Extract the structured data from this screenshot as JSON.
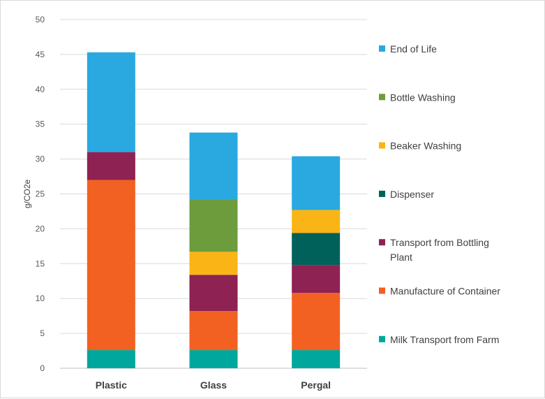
{
  "chart_data": {
    "type": "bar",
    "stacked": true,
    "title": "",
    "xlabel": "",
    "ylabel": "g/CO2e",
    "ylim": [
      0,
      50
    ],
    "yticks": [
      0,
      5,
      10,
      15,
      20,
      25,
      30,
      35,
      40,
      45,
      50
    ],
    "grid": true,
    "legend_position": "right",
    "categories": [
      "Plastic",
      "Glass",
      "Pergal"
    ],
    "series": [
      {
        "name": "Milk Transport from Farm",
        "label_lines": [
          "Milk Transport from Farm"
        ],
        "color": "#00A79D",
        "values": [
          2.6,
          2.6,
          2.6
        ]
      },
      {
        "name": "Manufacture of Container",
        "label_lines": [
          "Manufacture of Container"
        ],
        "color": "#F26122",
        "values": [
          24.4,
          5.6,
          8.2
        ]
      },
      {
        "name": "Transport from Bottling Plant",
        "label_lines": [
          "Transport from Bottling",
          "Plant"
        ],
        "color": "#8E2252",
        "values": [
          4.0,
          5.2,
          4.0
        ]
      },
      {
        "name": "Dispenser",
        "label_lines": [
          "Dispenser"
        ],
        "color": "#00615B",
        "values": [
          0,
          0,
          4.6
        ]
      },
      {
        "name": "Beaker Washing",
        "label_lines": [
          "Beaker Washing"
        ],
        "color": "#FBB416",
        "values": [
          0,
          3.3,
          3.3
        ]
      },
      {
        "name": "Bottle Washing",
        "label_lines": [
          "Bottle Washing"
        ],
        "color": "#6D9C3D",
        "values": [
          0,
          7.5,
          0
        ]
      },
      {
        "name": "End of Life",
        "label_lines": [
          "End of Life"
        ],
        "color": "#29A9E0",
        "values": [
          14.3,
          9.6,
          7.7
        ]
      }
    ]
  }
}
